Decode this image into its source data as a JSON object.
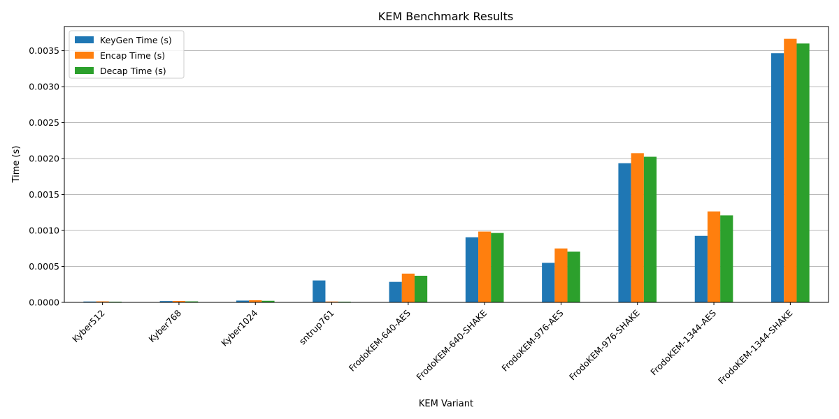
{
  "chart_data": {
    "type": "bar",
    "title": "KEM Benchmark Results",
    "xlabel": "KEM Variant",
    "ylabel": "Time (s)",
    "categories": [
      "Kyber512",
      "Kyber768",
      "Kyber1024",
      "sntrup761",
      "FrodoKEM-640-AES",
      "FrodoKEM-640-SHAKE",
      "FrodoKEM-976-AES",
      "FrodoKEM-976-SHAKE",
      "FrodoKEM-1344-AES",
      "FrodoKEM-1344-SHAKE"
    ],
    "series": [
      {
        "name": "KeyGen Time (s)",
        "color": "#1f77b4",
        "values": [
          1.2e-05,
          1.8e-05,
          2.5e-05,
          0.000305,
          0.000285,
          0.000905,
          0.00055,
          0.001935,
          0.000925,
          0.003465
        ]
      },
      {
        "name": "Encap Time (s)",
        "color": "#ff7f0e",
        "values": [
          1.4e-05,
          2e-05,
          3e-05,
          1.2e-05,
          0.0004,
          0.000985,
          0.00075,
          0.002075,
          0.001265,
          0.003665
        ]
      },
      {
        "name": "Decap Time (s)",
        "color": "#2ca02c",
        "values": [
          1e-05,
          1.4e-05,
          2.2e-05,
          1e-05,
          0.00037,
          0.000965,
          0.000705,
          0.002025,
          0.00121,
          0.0036
        ]
      }
    ],
    "ylim": [
      0,
      0.003836
    ],
    "yticks": [
      "0.0000",
      "0.0005",
      "0.0010",
      "0.0015",
      "0.0020",
      "0.0025",
      "0.0030",
      "0.0035"
    ],
    "ytick_values": [
      0,
      0.0005,
      0.001,
      0.0015,
      0.002,
      0.0025,
      0.003,
      0.0035
    ],
    "grid": "y",
    "legend_position": "upper-left"
  }
}
